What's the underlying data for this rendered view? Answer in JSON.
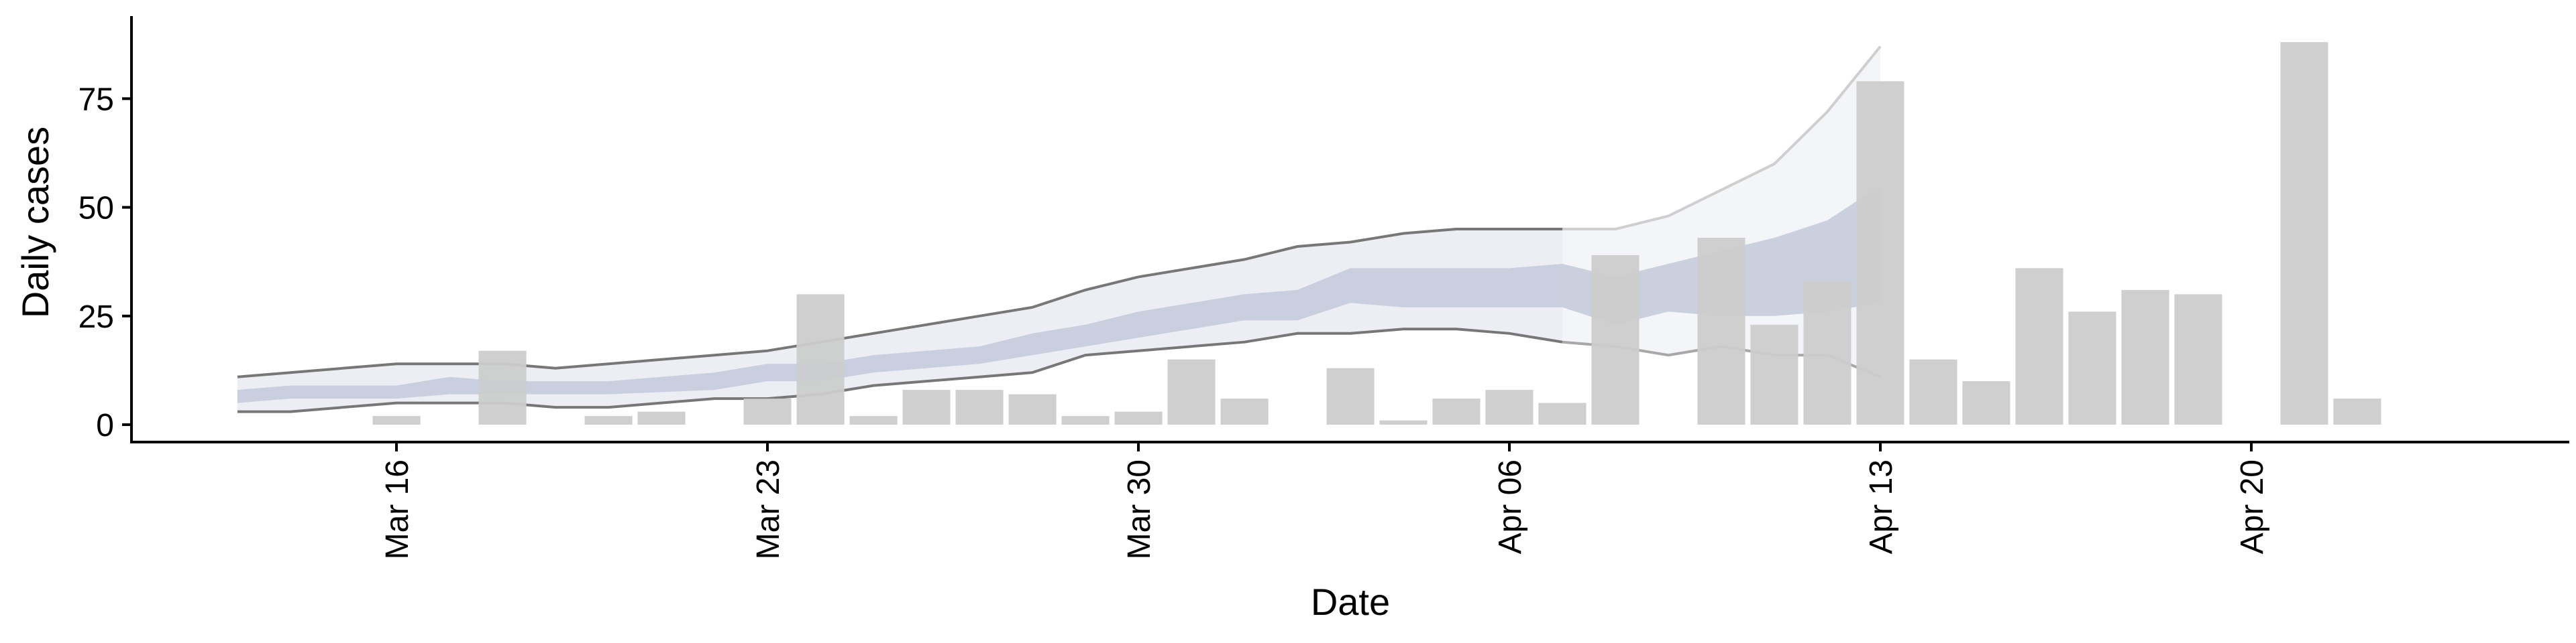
{
  "chart_data": {
    "type": "bar",
    "title": "",
    "xlabel": "Date",
    "ylabel": "Daily cases",
    "ylim": [
      -4,
      94
    ],
    "xlim": [
      "2020-03-11",
      "2020-04-26"
    ],
    "grid": false,
    "yticks": [
      0,
      25,
      50,
      75
    ],
    "xticks": [
      {
        "date": "2020-03-16",
        "label": "Mar 16"
      },
      {
        "date": "2020-03-23",
        "label": "Mar 23"
      },
      {
        "date": "2020-03-30",
        "label": "Mar 30"
      },
      {
        "date": "2020-04-06",
        "label": "Apr 06"
      },
      {
        "date": "2020-04-13",
        "label": "Apr 13"
      },
      {
        "date": "2020-04-20",
        "label": "Apr 20"
      }
    ],
    "colors": {
      "bars": "#cccccc",
      "band_inner": "#c3c9da",
      "band_outer": "#eceef4",
      "band_outer_light": "#f4f5f8",
      "line_dark": "#777777",
      "line_light": "#cfcfcf",
      "axis": "#000000"
    },
    "series": [
      {
        "type": "bar",
        "points": [
          {
            "x": "2020-03-16",
            "y": 2
          },
          {
            "x": "2020-03-18",
            "y": 17
          },
          {
            "x": "2020-03-20",
            "y": 2
          },
          {
            "x": "2020-03-21",
            "y": 3
          },
          {
            "x": "2020-03-23",
            "y": 6
          },
          {
            "x": "2020-03-24",
            "y": 30
          },
          {
            "x": "2020-03-25",
            "y": 2
          },
          {
            "x": "2020-03-26",
            "y": 8
          },
          {
            "x": "2020-03-27",
            "y": 8
          },
          {
            "x": "2020-03-28",
            "y": 7
          },
          {
            "x": "2020-03-29",
            "y": 2
          },
          {
            "x": "2020-03-30",
            "y": 3
          },
          {
            "x": "2020-03-31",
            "y": 15
          },
          {
            "x": "2020-04-01",
            "y": 6
          },
          {
            "x": "2020-04-03",
            "y": 13
          },
          {
            "x": "2020-04-04",
            "y": 1
          },
          {
            "x": "2020-04-05",
            "y": 6
          },
          {
            "x": "2020-04-06",
            "y": 8
          },
          {
            "x": "2020-04-07",
            "y": 5
          },
          {
            "x": "2020-04-08",
            "y": 39
          },
          {
            "x": "2020-04-10",
            "y": 43
          },
          {
            "x": "2020-04-11",
            "y": 23
          },
          {
            "x": "2020-04-12",
            "y": 33
          },
          {
            "x": "2020-04-13",
            "y": 79
          },
          {
            "x": "2020-04-14",
            "y": 15
          },
          {
            "x": "2020-04-15",
            "y": 10
          },
          {
            "x": "2020-04-16",
            "y": 36
          },
          {
            "x": "2020-04-17",
            "y": 26
          },
          {
            "x": "2020-04-18",
            "y": 31
          },
          {
            "x": "2020-04-19",
            "y": 30
          },
          {
            "x": "2020-04-21",
            "y": 88
          },
          {
            "x": "2020-04-22",
            "y": 6
          }
        ]
      },
      {
        "type": "band",
        "points": [
          {
            "x": "2020-03-13",
            "low": 3,
            "high": 11
          },
          {
            "x": "2020-03-14",
            "low": 3,
            "high": 12
          },
          {
            "x": "2020-03-16",
            "low": 5,
            "high": 14
          },
          {
            "x": "2020-03-18",
            "low": 5,
            "high": 14
          },
          {
            "x": "2020-03-19",
            "low": 4,
            "high": 13
          },
          {
            "x": "2020-03-20",
            "low": 4,
            "high": 14
          },
          {
            "x": "2020-03-22",
            "low": 6,
            "high": 16
          },
          {
            "x": "2020-03-23",
            "low": 6,
            "high": 17
          },
          {
            "x": "2020-03-24",
            "low": 7,
            "high": 19
          },
          {
            "x": "2020-03-25",
            "low": 9,
            "high": 21
          },
          {
            "x": "2020-03-27",
            "low": 11,
            "high": 25
          },
          {
            "x": "2020-03-28",
            "low": 12,
            "high": 27
          },
          {
            "x": "2020-03-29",
            "low": 16,
            "high": 31
          },
          {
            "x": "2020-03-30",
            "low": 17,
            "high": 34
          },
          {
            "x": "2020-04-01",
            "low": 19,
            "high": 38
          },
          {
            "x": "2020-04-02",
            "low": 21,
            "high": 41
          },
          {
            "x": "2020-04-03",
            "low": 21,
            "high": 42
          },
          {
            "x": "2020-04-04",
            "low": 22,
            "high": 44
          },
          {
            "x": "2020-04-05",
            "low": 22,
            "high": 45
          },
          {
            "x": "2020-04-06",
            "low": 21,
            "high": 45
          },
          {
            "x": "2020-04-07",
            "low": 19,
            "high": 45
          }
        ]
      },
      {
        "type": "band",
        "points": [
          {
            "x": "2020-04-07",
            "low": 19,
            "high": 45
          },
          {
            "x": "2020-04-08",
            "low": 18,
            "high": 45
          },
          {
            "x": "2020-04-09",
            "low": 16,
            "high": 48
          },
          {
            "x": "2020-04-10",
            "low": 18,
            "high": 54
          },
          {
            "x": "2020-04-11",
            "low": 16,
            "high": 60
          },
          {
            "x": "2020-04-12",
            "low": 16,
            "high": 72
          },
          {
            "x": "2020-04-13",
            "low": 11,
            "high": 87
          }
        ]
      },
      {
        "type": "band",
        "points": [
          {
            "x": "2020-03-13",
            "low": 5,
            "high": 8
          },
          {
            "x": "2020-03-14",
            "low": 6,
            "high": 9
          },
          {
            "x": "2020-03-16",
            "low": 6,
            "high": 9
          },
          {
            "x": "2020-03-17",
            "low": 7,
            "high": 11
          },
          {
            "x": "2020-03-18",
            "low": 7,
            "high": 10
          },
          {
            "x": "2020-03-20",
            "low": 7,
            "high": 10
          },
          {
            "x": "2020-03-22",
            "low": 8,
            "high": 12
          },
          {
            "x": "2020-03-23",
            "low": 10,
            "high": 14
          },
          {
            "x": "2020-03-24",
            "low": 10,
            "high": 14
          },
          {
            "x": "2020-03-25",
            "low": 12,
            "high": 16
          },
          {
            "x": "2020-03-26",
            "low": 13,
            "high": 17
          },
          {
            "x": "2020-03-27",
            "low": 14,
            "high": 18
          },
          {
            "x": "2020-03-28",
            "low": 16,
            "high": 21
          },
          {
            "x": "2020-03-29",
            "low": 18,
            "high": 23
          },
          {
            "x": "2020-03-30",
            "low": 20,
            "high": 26
          },
          {
            "x": "2020-03-31",
            "low": 22,
            "high": 28
          },
          {
            "x": "2020-04-01",
            "low": 24,
            "high": 30
          },
          {
            "x": "2020-04-02",
            "low": 24,
            "high": 31
          },
          {
            "x": "2020-04-03",
            "low": 28,
            "high": 36
          },
          {
            "x": "2020-04-04",
            "low": 27,
            "high": 36
          },
          {
            "x": "2020-04-05",
            "low": 27,
            "high": 36
          },
          {
            "x": "2020-04-06",
            "low": 27,
            "high": 36
          },
          {
            "x": "2020-04-07",
            "low": 27,
            "high": 37
          },
          {
            "x": "2020-04-08",
            "low": 23,
            "high": 34
          },
          {
            "x": "2020-04-09",
            "low": 26,
            "high": 37
          },
          {
            "x": "2020-04-10",
            "low": 25,
            "high": 40
          },
          {
            "x": "2020-04-11",
            "low": 25,
            "high": 43
          },
          {
            "x": "2020-04-12",
            "low": 26,
            "high": 47
          },
          {
            "x": "2020-04-13",
            "low": 28,
            "high": 55
          }
        ]
      }
    ]
  }
}
